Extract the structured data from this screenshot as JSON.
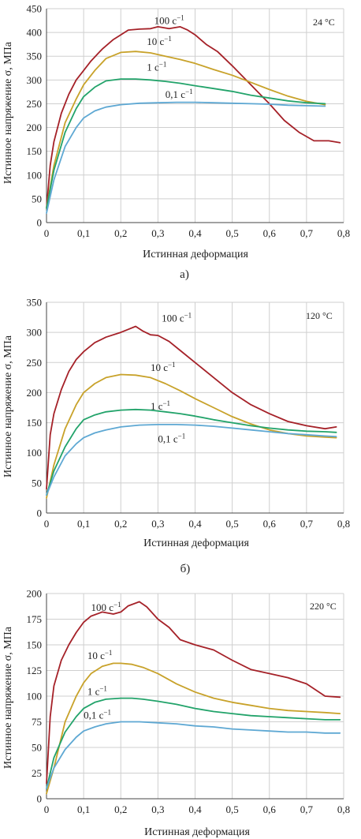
{
  "chart_data": [
    {
      "type": "line",
      "annotation": "24 °C",
      "panel_letter": "а)",
      "xlabel": "Истинная деформация",
      "ylabel": "Истинное напряжение σ, МПа",
      "xlim": [
        0,
        0.8
      ],
      "ylim": [
        0,
        450
      ],
      "xticks": [
        "0",
        "0,1",
        "0,2",
        "0,3",
        "0,4",
        "0,5",
        "0,6",
        "0,7",
        "0,8"
      ],
      "yticks": [
        "0",
        "50",
        "100",
        "150",
        "200",
        "250",
        "300",
        "350",
        "400",
        "450"
      ],
      "grid": true,
      "series": [
        {
          "name": "100 с⁻¹",
          "color": "#a52128",
          "x": [
            0,
            0.01,
            0.02,
            0.04,
            0.06,
            0.08,
            0.1,
            0.12,
            0.15,
            0.18,
            0.2,
            0.22,
            0.25,
            0.28,
            0.3,
            0.33,
            0.36,
            0.38,
            0.4,
            0.43,
            0.46,
            0.5,
            0.55,
            0.6,
            0.64,
            0.68,
            0.72,
            0.76,
            0.79
          ],
          "y": [
            30,
            120,
            170,
            230,
            270,
            300,
            320,
            340,
            365,
            385,
            395,
            405,
            407,
            408,
            412,
            408,
            412,
            405,
            395,
            375,
            360,
            330,
            290,
            250,
            215,
            190,
            172,
            172,
            168
          ]
        },
        {
          "name": "10 с⁻¹",
          "color": "#c8a22a",
          "x": [
            0,
            0.02,
            0.05,
            0.08,
            0.1,
            0.13,
            0.16,
            0.2,
            0.24,
            0.28,
            0.32,
            0.36,
            0.4,
            0.45,
            0.5,
            0.55,
            0.6,
            0.65,
            0.7,
            0.75
          ],
          "y": [
            30,
            120,
            210,
            260,
            290,
            320,
            345,
            358,
            360,
            357,
            350,
            343,
            335,
            322,
            310,
            295,
            280,
            266,
            255,
            248
          ]
        },
        {
          "name": "1 с⁻¹",
          "color": "#22a36a",
          "x": [
            0,
            0.02,
            0.05,
            0.08,
            0.1,
            0.13,
            0.16,
            0.2,
            0.24,
            0.28,
            0.32,
            0.36,
            0.4,
            0.45,
            0.5,
            0.55,
            0.6,
            0.65,
            0.7,
            0.75
          ],
          "y": [
            30,
            110,
            190,
            240,
            265,
            285,
            298,
            302,
            302,
            300,
            297,
            293,
            288,
            282,
            276,
            268,
            262,
            256,
            252,
            250
          ]
        },
        {
          "name": "0,1 с⁻¹",
          "color": "#5ea8d3",
          "x": [
            0,
            0.02,
            0.05,
            0.08,
            0.1,
            0.13,
            0.16,
            0.2,
            0.25,
            0.3,
            0.35,
            0.4,
            0.45,
            0.5,
            0.55,
            0.6,
            0.65,
            0.7,
            0.75
          ],
          "y": [
            20,
            90,
            160,
            200,
            220,
            235,
            243,
            248,
            251,
            252,
            253,
            253,
            252,
            251,
            250,
            249,
            247,
            246,
            245
          ]
        }
      ],
      "series_labels": [
        {
          "text": "100 с",
          "sup": "−1",
          "x": 0.29,
          "y": 418
        },
        {
          "text": "10 с",
          "sup": "−1",
          "x": 0.27,
          "y": 374
        },
        {
          "text": "1 с",
          "sup": "−1",
          "x": 0.27,
          "y": 320
        },
        {
          "text": "0,1 с",
          "sup": "−1",
          "x": 0.32,
          "y": 262
        }
      ]
    },
    {
      "type": "line",
      "annotation": "120 °C",
      "panel_letter": "б)",
      "xlabel": "Истинная деформация",
      "ylabel": "Истинное напряжение σ, МПа",
      "xlim": [
        0,
        0.8
      ],
      "ylim": [
        0,
        350
      ],
      "xticks": [
        "0",
        "0,1",
        "0,2",
        "0,3",
        "0,4",
        "0,5",
        "0,6",
        "0,7",
        "0,8"
      ],
      "yticks": [
        "0",
        "50",
        "100",
        "150",
        "200",
        "250",
        "300",
        "350"
      ],
      "grid": true,
      "series": [
        {
          "name": "100 с⁻¹",
          "color": "#a52128",
          "x": [
            0,
            0.01,
            0.02,
            0.04,
            0.06,
            0.08,
            0.1,
            0.13,
            0.16,
            0.2,
            0.22,
            0.24,
            0.26,
            0.28,
            0.3,
            0.33,
            0.36,
            0.4,
            0.45,
            0.5,
            0.55,
            0.6,
            0.65,
            0.7,
            0.75,
            0.78
          ],
          "y": [
            40,
            130,
            165,
            205,
            235,
            255,
            268,
            283,
            292,
            300,
            305,
            310,
            302,
            296,
            295,
            285,
            270,
            250,
            225,
            200,
            180,
            165,
            152,
            145,
            140,
            143
          ]
        },
        {
          "name": "10 с⁻¹",
          "color": "#c8a22a",
          "x": [
            0,
            0.02,
            0.05,
            0.08,
            0.1,
            0.13,
            0.16,
            0.2,
            0.24,
            0.28,
            0.32,
            0.36,
            0.4,
            0.45,
            0.5,
            0.55,
            0.6,
            0.65,
            0.7,
            0.75,
            0.78
          ],
          "y": [
            25,
            80,
            140,
            180,
            200,
            215,
            225,
            230,
            229,
            225,
            215,
            203,
            190,
            175,
            160,
            148,
            138,
            132,
            128,
            126,
            125
          ]
        },
        {
          "name": "1 с⁻¹",
          "color": "#22a36a",
          "x": [
            0,
            0.02,
            0.05,
            0.08,
            0.1,
            0.13,
            0.16,
            0.2,
            0.24,
            0.28,
            0.32,
            0.36,
            0.4,
            0.45,
            0.5,
            0.55,
            0.6,
            0.65,
            0.7,
            0.75,
            0.78
          ],
          "y": [
            30,
            70,
            110,
            140,
            155,
            163,
            168,
            171,
            172,
            171,
            168,
            165,
            161,
            155,
            150,
            145,
            141,
            138,
            136,
            135,
            134
          ]
        },
        {
          "name": "0,1 с⁻¹",
          "color": "#5ea8d3",
          "x": [
            0,
            0.02,
            0.05,
            0.08,
            0.1,
            0.13,
            0.16,
            0.2,
            0.25,
            0.3,
            0.35,
            0.4,
            0.45,
            0.5,
            0.55,
            0.6,
            0.65,
            0.7,
            0.75,
            0.78
          ],
          "y": [
            30,
            60,
            95,
            115,
            125,
            133,
            138,
            143,
            146,
            147,
            147,
            146,
            144,
            141,
            138,
            135,
            132,
            130,
            128,
            127
          ]
        }
      ],
      "series_labels": [
        {
          "text": "100 с",
          "sup": "−1",
          "x": 0.31,
          "y": 318
        },
        {
          "text": "10 с",
          "sup": "−1",
          "x": 0.28,
          "y": 236
        },
        {
          "text": "1 с",
          "sup": "−1",
          "x": 0.28,
          "y": 172
        },
        {
          "text": "0,1 с",
          "sup": "−1",
          "x": 0.3,
          "y": 117
        }
      ]
    },
    {
      "type": "line",
      "annotation": "220 °C",
      "panel_letter": "в)",
      "xlabel": "Истинная деформация",
      "ylabel": "Истинное напряжение σ, МПа",
      "xlim": [
        0,
        0.8
      ],
      "ylim": [
        0,
        200
      ],
      "xticks": [
        "0",
        "0,1",
        "0,2",
        "0,3",
        "0,4",
        "0,5",
        "0,6",
        "0,7",
        "0,8"
      ],
      "yticks": [
        "0",
        "25",
        "50",
        "75",
        "100",
        "125",
        "150",
        "175",
        "200"
      ],
      "grid": true,
      "series": [
        {
          "name": "100 с⁻¹",
          "color": "#a52128",
          "x": [
            0,
            0.01,
            0.02,
            0.04,
            0.06,
            0.08,
            0.1,
            0.12,
            0.15,
            0.18,
            0.2,
            0.22,
            0.25,
            0.27,
            0.3,
            0.33,
            0.36,
            0.4,
            0.45,
            0.5,
            0.55,
            0.6,
            0.65,
            0.7,
            0.75,
            0.79
          ],
          "y": [
            15,
            80,
            110,
            135,
            150,
            162,
            172,
            178,
            182,
            180,
            182,
            188,
            192,
            187,
            175,
            167,
            155,
            150,
            145,
            135,
            126,
            122,
            118,
            112,
            100,
            99
          ]
        },
        {
          "name": "10 с⁻¹",
          "color": "#c8a22a",
          "x": [
            0,
            0.02,
            0.05,
            0.08,
            0.1,
            0.12,
            0.15,
            0.18,
            0.2,
            0.23,
            0.26,
            0.3,
            0.35,
            0.4,
            0.45,
            0.5,
            0.55,
            0.6,
            0.65,
            0.7,
            0.75,
            0.79
          ],
          "y": [
            5,
            30,
            75,
            100,
            113,
            122,
            129,
            132,
            132,
            131,
            128,
            122,
            112,
            104,
            98,
            94,
            91,
            88,
            86,
            85,
            84,
            83
          ]
        },
        {
          "name": "1 с⁻¹",
          "color": "#22a36a",
          "x": [
            0,
            0.02,
            0.05,
            0.08,
            0.1,
            0.13,
            0.16,
            0.2,
            0.23,
            0.26,
            0.3,
            0.35,
            0.4,
            0.45,
            0.5,
            0.55,
            0.6,
            0.65,
            0.7,
            0.75,
            0.79
          ],
          "y": [
            10,
            40,
            65,
            80,
            88,
            94,
            97,
            98,
            98,
            97,
            95,
            92,
            88,
            85,
            83,
            81,
            80,
            79,
            78,
            77,
            77
          ]
        },
        {
          "name": "0,1 с⁻¹",
          "color": "#5ea8d3",
          "x": [
            0,
            0.02,
            0.05,
            0.08,
            0.1,
            0.13,
            0.16,
            0.2,
            0.25,
            0.3,
            0.35,
            0.4,
            0.45,
            0.5,
            0.55,
            0.6,
            0.65,
            0.7,
            0.75,
            0.79
          ],
          "y": [
            10,
            30,
            48,
            60,
            66,
            70,
            73,
            75,
            75,
            74,
            73,
            71,
            70,
            68,
            67,
            66,
            65,
            65,
            64,
            64
          ]
        }
      ],
      "series_labels": [
        {
          "text": "100 с",
          "sup": "−1",
          "x": 0.12,
          "y": 183
        },
        {
          "text": "10 с",
          "sup": "−1",
          "x": 0.11,
          "y": 136
        },
        {
          "text": "1 с",
          "sup": "−1",
          "x": 0.11,
          "y": 101
        },
        {
          "text": "0,1 с",
          "sup": "−1",
          "x": 0.1,
          "y": 78
        }
      ]
    }
  ]
}
